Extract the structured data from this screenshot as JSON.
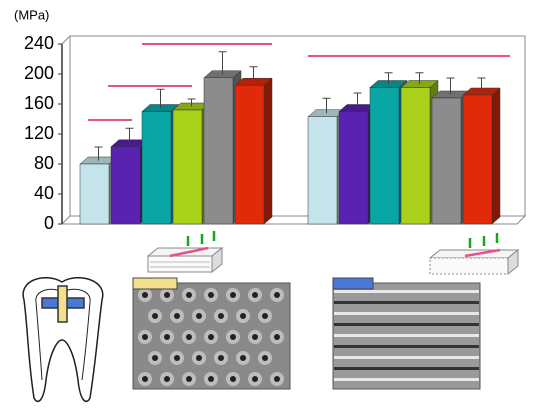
{
  "chart_data": {
    "type": "bar",
    "y_label": "(MPa)",
    "categories": [
      null,
      null
    ],
    "series": [
      {
        "color": "#c5e3ea",
        "values": [
          80,
          143
        ],
        "errors": [
          18,
          20
        ]
      },
      {
        "color": "#5a22b0",
        "values": [
          103,
          150
        ],
        "errors": [
          20,
          20
        ]
      },
      {
        "color": "#0aa6a6",
        "values": [
          150,
          182
        ],
        "errors": [
          25,
          15
        ]
      },
      {
        "color": "#a9d11a",
        "values": [
          152,
          182
        ],
        "errors": [
          10,
          15
        ]
      },
      {
        "color": "#8c8c8c",
        "values": [
          195,
          168
        ],
        "errors": [
          30,
          22
        ]
      },
      {
        "color": "#e02a0a",
        "values": [
          185,
          172
        ],
        "errors": [
          20,
          18
        ]
      }
    ],
    "ylim": [
      0,
      240
    ],
    "yticks": [
      0,
      40,
      80,
      120,
      160,
      200,
      240
    ]
  }
}
